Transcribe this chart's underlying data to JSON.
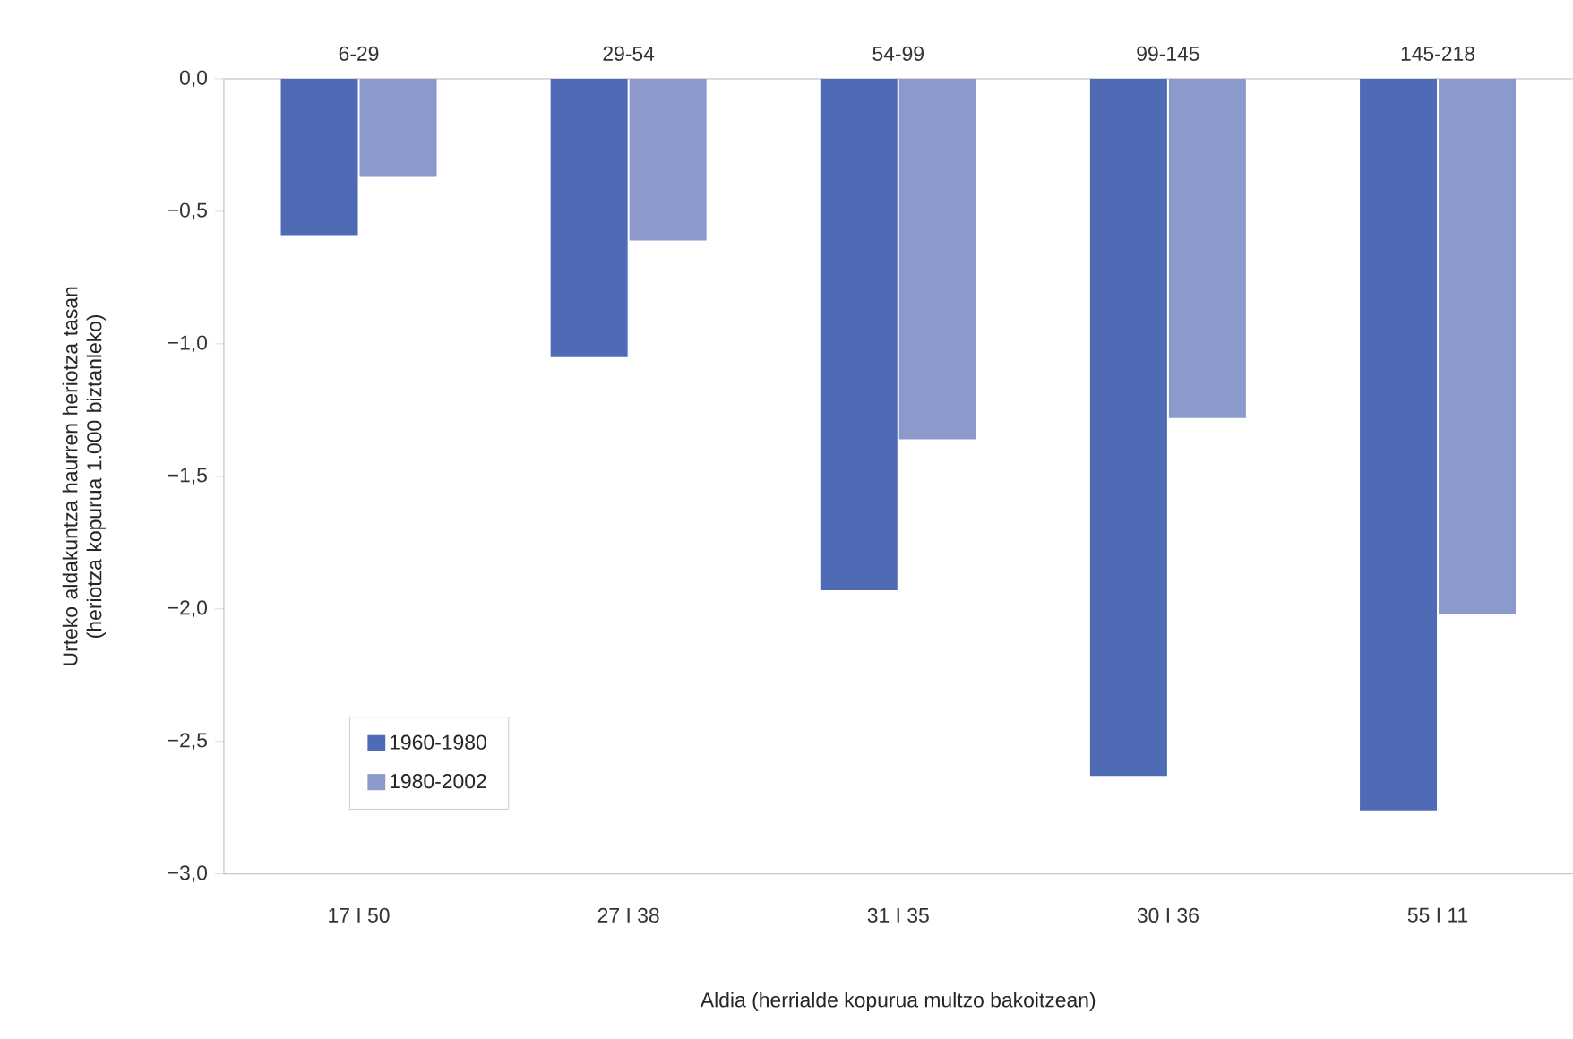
{
  "chart_data": {
    "type": "bar",
    "categories": [
      "17 I 50",
      "27 I 38",
      "31 I 35",
      "30 I 36",
      "55 I 11"
    ],
    "series": [
      {
        "name": "1960-1980",
        "color": "#4f6bb5",
        "values": [
          -0.59,
          -1.05,
          -1.93,
          -2.63,
          -2.76
        ]
      },
      {
        "name": "1980-2002",
        "color": "#8b9acb",
        "values": [
          -0.37,
          -0.61,
          -1.36,
          -1.28,
          -2.02
        ]
      }
    ],
    "xlabel": "Aldia (herrialde kopurua multzo bakoitzean)",
    "ylabel": "Urteko aldakuntza haurren heriotza tasan (heriotza kopurua 1.000 biztanleko)",
    "annotations": [
      "6-29",
      "29-54",
      "54-99",
      "99-145",
      "145-218"
    ],
    "ylim": [
      -3.0,
      0.0
    ],
    "yticks": [
      {
        "value": -3.0,
        "label": "−3,0"
      },
      {
        "value": -2.5,
        "label": "−2,5"
      },
      {
        "value": -2.0,
        "label": "−2,0"
      },
      {
        "value": -1.5,
        "label": "−1,5"
      },
      {
        "value": -1.0,
        "label": "−1,0"
      },
      {
        "value": -0.5,
        "label": "−0,5"
      },
      {
        "value": 0.0,
        "label": "0,0"
      }
    ],
    "legend": "bottom left",
    "grid": false
  }
}
